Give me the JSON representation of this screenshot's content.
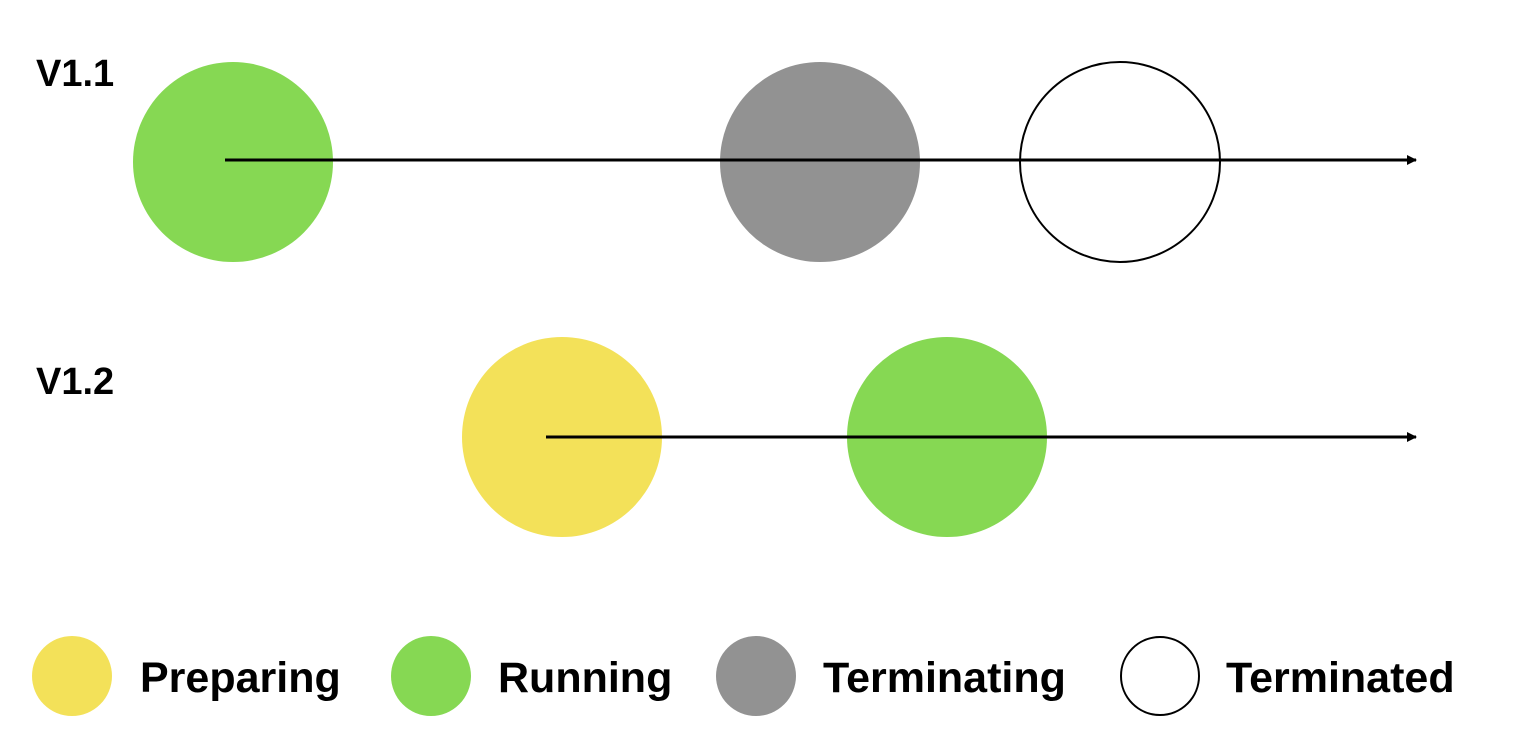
{
  "timelines": [
    {
      "label": "V1.1",
      "states": [
        "running",
        "terminating",
        "terminated"
      ]
    },
    {
      "label": "V1.2",
      "states": [
        "preparing",
        "running"
      ]
    }
  ],
  "legend": [
    {
      "state": "preparing",
      "label": "Preparing"
    },
    {
      "state": "running",
      "label": "Running"
    },
    {
      "state": "terminating",
      "label": "Terminating"
    },
    {
      "state": "terminated",
      "label": "Terminated"
    }
  ],
  "colors": {
    "preparing": "#F3E159",
    "running": "#86D853",
    "terminating": "#929292",
    "terminated": "#FFFFFF",
    "stroke": "#000000",
    "arrow": "#000000"
  }
}
